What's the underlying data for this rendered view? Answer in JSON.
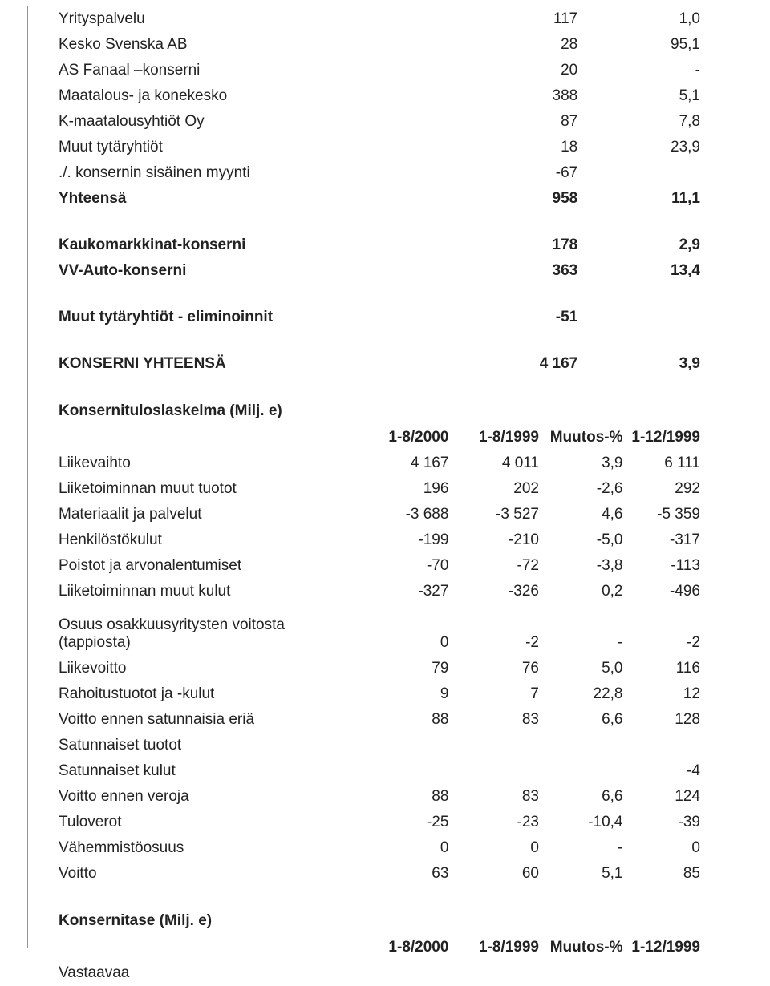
{
  "segmentRows": [
    {
      "label": "Yrityspalvelu",
      "v1": "117",
      "v2": "1,0",
      "bold": false
    },
    {
      "label": "Kesko Svenska AB",
      "v1": "28",
      "v2": "95,1",
      "bold": false
    },
    {
      "label": "AS Fanaal –konserni",
      "v1": "20",
      "v2": "-",
      "bold": false
    },
    {
      "label": "Maatalous- ja konekesko",
      "v1": "388",
      "v2": "5,1",
      "bold": false
    },
    {
      "label": "K-maatalousyhtiöt Oy",
      "v1": "87",
      "v2": "7,8",
      "bold": false
    },
    {
      "label": "Muut tytäryhtiöt",
      "v1": "18",
      "v2": "23,9",
      "bold": false
    },
    {
      "label": "./. konsernin sisäinen myynti",
      "v1": "-67",
      "v2": "",
      "bold": false
    },
    {
      "label": "Yhteensä",
      "v1": "958",
      "v2": "11,1",
      "bold": true
    }
  ],
  "midRows": [
    {
      "label": "Kaukomarkkinat-konserni",
      "v1": "178",
      "v2": "2,9",
      "bold": true
    },
    {
      "label": "VV-Auto-konserni",
      "v1": "363",
      "v2": "13,4",
      "bold": true
    }
  ],
  "elimRow": {
    "label": "Muut tytäryhtiöt - eliminoinnit",
    "v1": "-51",
    "v2": "",
    "bold": true
  },
  "totalRow": {
    "label": "KONSERNI YHTEENSÄ",
    "v1": "4 167",
    "v2": "3,9",
    "bold": true
  },
  "isTitle": "Konsernituloslaskelma (Milj. e)",
  "isHeaders": [
    "1-8/2000",
    "1-8/1999",
    "Muutos-%",
    "1-12/1999"
  ],
  "isRows": [
    {
      "label": "Liikevaihto",
      "c": [
        "4 167",
        "4 011",
        "3,9",
        "6 111"
      ]
    },
    {
      "label": "Liiketoiminnan muut tuotot",
      "c": [
        "196",
        "202",
        "-2,6",
        "292"
      ]
    },
    {
      "label": "Materiaalit ja palvelut",
      "c": [
        "-3 688",
        "-3 527",
        "4,6",
        "-5 359"
      ]
    },
    {
      "label": "Henkilöstökulut",
      "c": [
        "-199",
        "-210",
        "-5,0",
        "-317"
      ]
    },
    {
      "label": "Poistot ja arvonalentumiset",
      "c": [
        "-70",
        "-72",
        "-3,8",
        "-113"
      ]
    },
    {
      "label": "Liiketoiminnan muut kulut",
      "c": [
        "-327",
        "-326",
        "0,2",
        "-496"
      ]
    }
  ],
  "isRows2": [
    {
      "label": "Osuus osakkuusyritysten voitosta (tappiosta)",
      "c": [
        "0",
        "-2",
        "-",
        "-2"
      ]
    },
    {
      "label": "Liikevoitto",
      "c": [
        "79",
        "76",
        "5,0",
        "116"
      ]
    },
    {
      "label": "Rahoitustuotot ja -kulut",
      "c": [
        "9",
        "7",
        "22,8",
        "12"
      ]
    },
    {
      "label": "Voitto ennen satunnaisia eriä",
      "c": [
        "88",
        "83",
        "6,6",
        "128"
      ]
    },
    {
      "label": "Satunnaiset tuotot",
      "c": [
        "",
        "",
        "",
        ""
      ]
    },
    {
      "label": "Satunnaiset kulut",
      "c": [
        "",
        "",
        "",
        "-4"
      ]
    },
    {
      "label": "Voitto ennen veroja",
      "c": [
        "88",
        "83",
        "6,6",
        "124"
      ]
    },
    {
      "label": "Tuloverot",
      "c": [
        "-25",
        "-23",
        "-10,4",
        "-39"
      ]
    },
    {
      "label": "Vähemmistöosuus",
      "c": [
        "0",
        "0",
        "-",
        "0"
      ]
    },
    {
      "label": "Voitto",
      "c": [
        "63",
        "60",
        "5,1",
        "85"
      ]
    }
  ],
  "bsTitle": "Konsernitase (Milj. e)",
  "bsHeaders": [
    "1-8/2000",
    "1-8/1999",
    "Muutos-%",
    "1-12/1999"
  ],
  "bsRow1": "Vastaavaa"
}
